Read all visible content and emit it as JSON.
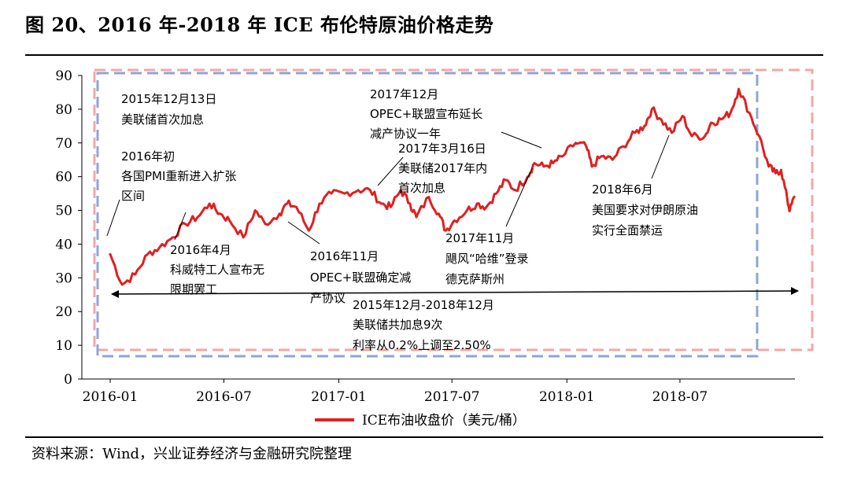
{
  "title": "图 20、2016 年-2018 年 ICE 布伦特原油价格走势",
  "source": "资料来源：Wind，兴业证券经济与金融研究院整理",
  "chart_data": {
    "type": "line",
    "y_ticks": [
      "90",
      "80",
      "70",
      "60",
      "50",
      "40",
      "30",
      "20",
      "10",
      "0"
    ],
    "x_ticks": [
      "2016-01",
      "2016-07",
      "2017-01",
      "2017-07",
      "2018-01",
      "2018-07"
    ],
    "ylim": [
      0,
      90
    ],
    "grid": false,
    "legend_position": "bottom",
    "series": [
      {
        "name": "ICE布油收盘价（美元/桶）",
        "color": "#e02020",
        "points": [
          [
            "2016-01-01",
            37
          ],
          [
            "2016-01-20",
            28
          ],
          [
            "2016-02-10",
            31
          ],
          [
            "2016-03-01",
            37
          ],
          [
            "2016-03-20",
            39
          ],
          [
            "2016-04-10",
            42
          ],
          [
            "2016-04-30",
            46
          ],
          [
            "2016-05-20",
            48
          ],
          [
            "2016-06-08",
            52
          ],
          [
            "2016-06-25",
            49
          ],
          [
            "2016-07-10",
            47
          ],
          [
            "2016-08-01",
            42
          ],
          [
            "2016-08-20",
            50
          ],
          [
            "2016-09-05",
            46
          ],
          [
            "2016-09-28",
            49
          ],
          [
            "2016-10-10",
            52
          ],
          [
            "2016-10-25",
            51
          ],
          [
            "2016-11-14",
            44
          ],
          [
            "2016-12-01",
            52
          ],
          [
            "2016-12-20",
            55
          ],
          [
            "2017-01-10",
            55
          ],
          [
            "2017-02-01",
            56
          ],
          [
            "2017-02-20",
            56
          ],
          [
            "2017-03-10",
            52
          ],
          [
            "2017-03-25",
            51
          ],
          [
            "2017-04-10",
            56
          ],
          [
            "2017-04-25",
            52
          ],
          [
            "2017-05-05",
            48
          ],
          [
            "2017-05-25",
            54
          ],
          [
            "2017-06-10",
            49
          ],
          [
            "2017-06-21",
            44
          ],
          [
            "2017-07-05",
            47
          ],
          [
            "2017-07-25",
            50
          ],
          [
            "2017-08-10",
            52
          ],
          [
            "2017-08-25",
            51
          ],
          [
            "2017-09-10",
            55
          ],
          [
            "2017-09-25",
            59
          ],
          [
            "2017-10-10",
            56
          ],
          [
            "2017-10-30",
            60
          ],
          [
            "2017-11-10",
            64
          ],
          [
            "2017-11-25",
            63
          ],
          [
            "2017-12-10",
            64
          ],
          [
            "2017-12-25",
            66
          ],
          [
            "2018-01-15",
            70
          ],
          [
            "2018-02-01",
            69
          ],
          [
            "2018-02-10",
            63
          ],
          [
            "2018-02-25",
            66
          ],
          [
            "2018-03-15",
            65
          ],
          [
            "2018-04-01",
            69
          ],
          [
            "2018-04-20",
            73
          ],
          [
            "2018-05-05",
            75
          ],
          [
            "2018-05-17",
            80
          ],
          [
            "2018-06-01",
            77
          ],
          [
            "2018-06-18",
            73
          ],
          [
            "2018-07-05",
            78
          ],
          [
            "2018-07-20",
            72
          ],
          [
            "2018-08-10",
            72
          ],
          [
            "2018-08-20",
            76
          ],
          [
            "2018-09-05",
            77
          ],
          [
            "2018-09-20",
            79
          ],
          [
            "2018-10-03",
            86
          ],
          [
            "2018-10-20",
            79
          ],
          [
            "2018-11-05",
            72
          ],
          [
            "2018-11-20",
            63
          ],
          [
            "2018-12-01",
            61
          ],
          [
            "2018-12-10",
            62
          ],
          [
            "2018-12-20",
            53
          ],
          [
            "2018-12-24",
            50
          ],
          [
            "2018-12-31",
            54
          ]
        ]
      }
    ],
    "annotations": [
      {
        "id": "a1",
        "lines": [
          "2015年12月13日",
          "美联储首次加息"
        ]
      },
      {
        "id": "a2",
        "lines": [
          "2016年初",
          "各国PMI重新进入扩张",
          "区间"
        ]
      },
      {
        "id": "a3",
        "lines": [
          "2016年4月",
          "科威特工人宣布无",
          "限期罢工"
        ]
      },
      {
        "id": "a4",
        "lines": [
          "2016年11月",
          "OPEC+联盟确定减",
          "产协议"
        ]
      },
      {
        "id": "a5",
        "lines": [
          "2017年12月",
          "OPEC+联盟宣布延长",
          "减产协议一年"
        ]
      },
      {
        "id": "a6",
        "lines": [
          "2017年3月16日",
          "美联储2017年内",
          "首次加息"
        ]
      },
      {
        "id": "a7",
        "lines": [
          "2017年11月",
          "飓风“哈维”登录",
          "德克萨斯州"
        ]
      },
      {
        "id": "a8",
        "lines": [
          "2018年6月",
          "美国要求对伊朗原油",
          "实行全面禁运"
        ]
      },
      {
        "id": "a9",
        "lines": [
          "2015年12月-2018年12月",
          "美联储共加息9次",
          "利率从0.2%上调至2.50%"
        ]
      }
    ]
  },
  "colors": {
    "line": "#e02020",
    "blue_box": "#8fa5d6",
    "pink_box": "#f0a8a8",
    "axis": "#000000"
  }
}
